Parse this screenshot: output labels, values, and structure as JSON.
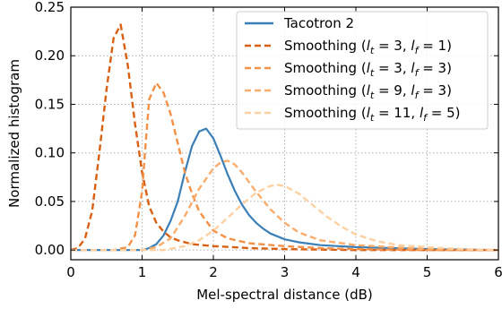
{
  "chart_data": {
    "type": "line",
    "xlabel": "Mel-spectral distance (dB)",
    "ylabel": "Normalized histogram",
    "xlim": [
      0,
      6
    ],
    "ylim": [
      -0.01,
      0.25
    ],
    "xticks": [
      "0",
      "1",
      "2",
      "3",
      "4",
      "5",
      "6"
    ],
    "yticks": [
      "0.00",
      "0.05",
      "0.10",
      "0.15",
      "0.20",
      "0.25"
    ],
    "grid": true,
    "legend_position": "top-right",
    "series": [
      {
        "name": "Tacotron 2",
        "color": "#3a7fb8",
        "dash": "solid",
        "x": [
          0,
          0.5,
          1.0,
          1.1,
          1.2,
          1.3,
          1.4,
          1.5,
          1.6,
          1.7,
          1.8,
          1.9,
          2.0,
          2.1,
          2.2,
          2.3,
          2.4,
          2.5,
          2.6,
          2.7,
          2.8,
          3.0,
          3.2,
          3.5,
          4.0,
          5.0,
          6.0
        ],
        "y": [
          0,
          0,
          0,
          0.002,
          0.006,
          0.015,
          0.03,
          0.05,
          0.08,
          0.107,
          0.122,
          0.125,
          0.115,
          0.097,
          0.078,
          0.061,
          0.047,
          0.036,
          0.028,
          0.022,
          0.017,
          0.011,
          0.008,
          0.005,
          0.003,
          0.001,
          0
        ]
      },
      {
        "name": "Smoothing (l_t = 3, l_f = 1)",
        "label_parts": [
          "Smoothing (",
          "l",
          "t",
          " = 3, ",
          "l",
          "f",
          " = 1)"
        ],
        "color": "#d95f12",
        "dash": "dashed",
        "x": [
          0,
          0.1,
          0.2,
          0.3,
          0.4,
          0.5,
          0.6,
          0.7,
          0.8,
          0.9,
          1.0,
          1.1,
          1.2,
          1.3,
          1.4,
          1.5,
          1.7,
          2.0,
          2.5,
          3.0,
          4.0,
          6.0
        ],
        "y": [
          0,
          0.002,
          0.012,
          0.04,
          0.1,
          0.165,
          0.218,
          0.232,
          0.19,
          0.13,
          0.08,
          0.045,
          0.028,
          0.019,
          0.013,
          0.01,
          0.006,
          0.004,
          0.002,
          0.001,
          0,
          0
        ]
      },
      {
        "name": "Smoothing (l_t = 3, l_f = 3)",
        "label_parts": [
          "Smoothing (",
          "l",
          "t",
          " = 3, ",
          "l",
          "f",
          " = 3)"
        ],
        "color": "#f29147",
        "dash": "dashed",
        "x": [
          0,
          0.6,
          0.8,
          0.9,
          1.0,
          1.05,
          1.1,
          1.2,
          1.3,
          1.4,
          1.5,
          1.6,
          1.7,
          1.8,
          2.0,
          2.2,
          2.5,
          3.0,
          3.5,
          4.0,
          5.0,
          6.0
        ],
        "y": [
          0,
          0,
          0.003,
          0.015,
          0.06,
          0.11,
          0.155,
          0.172,
          0.162,
          0.14,
          0.11,
          0.08,
          0.058,
          0.04,
          0.02,
          0.012,
          0.007,
          0.004,
          0.002,
          0.001,
          0,
          0
        ]
      },
      {
        "name": "Smoothing (l_t = 9, l_f = 3)",
        "label_parts": [
          "Smoothing (",
          "l",
          "t",
          " = 9, ",
          "l",
          "f",
          " = 3)"
        ],
        "color": "#f9ac6c",
        "dash": "dashed",
        "x": [
          0,
          1.0,
          1.2,
          1.4,
          1.6,
          1.8,
          2.0,
          2.1,
          2.2,
          2.3,
          2.4,
          2.6,
          2.8,
          3.0,
          3.2,
          3.5,
          4.0,
          4.5,
          5.0,
          6.0
        ],
        "y": [
          0,
          0,
          0.003,
          0.012,
          0.035,
          0.063,
          0.084,
          0.09,
          0.092,
          0.088,
          0.08,
          0.06,
          0.042,
          0.028,
          0.018,
          0.01,
          0.005,
          0.003,
          0.001,
          0
        ]
      },
      {
        "name": "Smoothing (l_t = 11, l_f = 5)",
        "label_parts": [
          "Smoothing (",
          "l",
          "t",
          " = 11, ",
          "l",
          "f",
          " = 5)"
        ],
        "color": "#fdd0a2",
        "dash": "dashed",
        "x": [
          0,
          1.3,
          1.6,
          1.8,
          2.0,
          2.2,
          2.4,
          2.6,
          2.8,
          2.9,
          3.0,
          3.2,
          3.4,
          3.6,
          3.8,
          4.0,
          4.3,
          4.6,
          5.0,
          5.5,
          6.0
        ],
        "y": [
          0,
          0,
          0.004,
          0.01,
          0.02,
          0.033,
          0.047,
          0.059,
          0.066,
          0.067,
          0.066,
          0.058,
          0.046,
          0.034,
          0.024,
          0.016,
          0.009,
          0.005,
          0.003,
          0.001,
          0
        ]
      }
    ]
  }
}
